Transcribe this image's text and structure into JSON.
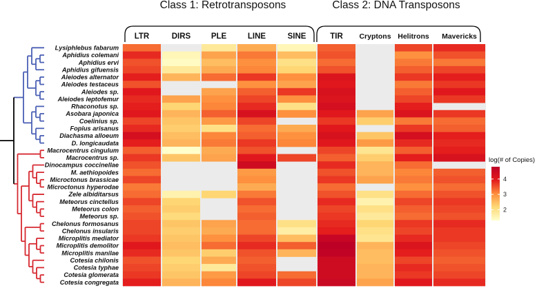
{
  "chart_data": {
    "type": "heatmap",
    "groups": [
      {
        "label": "Class 1: Retrotransposons",
        "columns": [
          "LTR",
          "DIRS",
          "PLE",
          "LINE",
          "SINE"
        ]
      },
      {
        "label": "Class 2: DNA Transposons",
        "columns": [
          "TIR",
          "Cryptons",
          "Helitrons",
          "Mavericks"
        ]
      }
    ],
    "columns": [
      "LTR",
      "DIRS",
      "PLE",
      "LINE",
      "SINE",
      "TIR",
      "Cryptons",
      "Helitrons",
      "Mavericks"
    ],
    "rows": [
      "Lysiphlebus fabarum",
      "Aphidius colemani",
      "Aphidius ervi",
      "Aphidius gifuensis",
      "Aleiodes alternator",
      "Aleiodes testaceus",
      "Aleiodes sp.",
      "Aleiodes leptofemur",
      "Rhaconotus sp.",
      "Asobara japonica",
      "Coelinius sp.",
      "Fopius arisanus",
      "Diachasma alloeum",
      "D. longicaudata",
      "Macrocentrus cingulum",
      "Macrocentrus sp.",
      "Dinocampus coccinellae",
      "M. aethiopoides",
      "Microctonus brassicae",
      "Microctonus hyperodae",
      "Zele albiditarsus",
      "Meteorus cinctellus",
      "Meteorus colon",
      "Meteorus sp.",
      "Chelonus formosanus",
      "Chelonus insularis",
      "Microplitis mediator",
      "Microplitis demolitor",
      "Microplitis manilae",
      "Cotesia chilonis",
      "Cotesia typhae",
      "Cotesia glomerata",
      "Cotesia congregata"
    ],
    "values": [
      [
        3.3,
        null,
        1.8,
        2.7,
        1.5,
        3.4,
        null,
        3.6,
        3.8
      ],
      [
        3.8,
        1.5,
        2.8,
        3.2,
        2.5,
        3.5,
        null,
        3.0,
        3.5
      ],
      [
        3.5,
        1.4,
        2.5,
        3.0,
        2.0,
        3.3,
        null,
        3.2,
        3.2
      ],
      [
        3.6,
        1.8,
        2.7,
        3.1,
        2.2,
        3.5,
        null,
        3.4,
        3.6
      ],
      [
        3.9,
        2.6,
        3.3,
        3.7,
        3.0,
        4.1,
        null,
        3.7,
        3.9
      ],
      [
        3.5,
        null,
        null,
        3.0,
        2.8,
        4.0,
        null,
        3.2,
        3.7
      ],
      [
        4.0,
        null,
        2.8,
        3.4,
        3.7,
        4.2,
        null,
        3.4,
        4.0
      ],
      [
        3.8,
        2.8,
        3.0,
        3.6,
        3.0,
        4.1,
        null,
        3.6,
        3.7
      ],
      [
        3.9,
        2.2,
        3.1,
        3.8,
        2.0,
        4.3,
        null,
        3.9,
        null
      ],
      [
        4.0,
        2.6,
        3.4,
        4.2,
        3.0,
        4.0,
        2.8,
        4.1,
        3.7
      ],
      [
        3.6,
        2.4,
        2.9,
        3.6,
        null,
        3.7,
        2.3,
        3.2,
        3.3
      ],
      [
        3.8,
        2.3,
        2.0,
        3.3,
        2.7,
        4.0,
        null,
        3.7,
        3.4
      ],
      [
        4.3,
        2.5,
        3.1,
        3.4,
        3.0,
        4.2,
        2.4,
        4.3,
        3.9
      ],
      [
        3.9,
        2.6,
        3.2,
        3.7,
        3.1,
        4.0,
        2.9,
        3.8,
        3.8
      ],
      [
        3.4,
        1.3,
        2.7,
        3.5,
        null,
        3.6,
        1.9,
        3.4,
        3.9
      ],
      [
        3.7,
        2.4,
        2.8,
        4.0,
        3.6,
        3.4,
        2.3,
        3.9,
        4.2
      ],
      [
        3.5,
        null,
        null,
        4.4,
        null,
        3.8,
        2.6,
        3.3,
        null
      ],
      [
        3.3,
        null,
        null,
        2.9,
        null,
        3.5,
        2.6,
        3.1,
        3.4
      ],
      [
        3.6,
        null,
        null,
        3.0,
        null,
        3.7,
        2.8,
        3.2,
        3.5
      ],
      [
        3.2,
        null,
        null,
        2.7,
        null,
        3.3,
        null,
        3.0,
        3.3
      ],
      [
        3.3,
        1.6,
        2.2,
        3.2,
        null,
        3.5,
        2.0,
        3.3,
        3.5
      ],
      [
        3.6,
        2.2,
        null,
        3.5,
        null,
        3.8,
        1.6,
        3.6,
        3.7
      ],
      [
        3.4,
        2.3,
        null,
        3.3,
        null,
        3.6,
        2.0,
        3.4,
        3.6
      ],
      [
        3.5,
        2.1,
        null,
        3.4,
        null,
        3.7,
        1.8,
        3.3,
        3.5
      ],
      [
        3.6,
        2.4,
        2.8,
        3.3,
        2.0,
        3.8,
        2.2,
        3.7,
        3.8
      ],
      [
        3.6,
        2.3,
        2.7,
        3.3,
        1.7,
        3.9,
        2.0,
        3.6,
        3.7
      ],
      [
        3.7,
        2.4,
        3.0,
        3.6,
        2.5,
        4.6,
        1.9,
        3.8,
        3.7
      ],
      [
        4.0,
        2.5,
        3.3,
        3.8,
        3.4,
        4.8,
        2.6,
        4.1,
        3.6
      ],
      [
        3.8,
        2.4,
        2.3,
        3.5,
        2.6,
        4.7,
        2.5,
        3.9,
        3.5
      ],
      [
        3.5,
        2.2,
        2.7,
        3.4,
        null,
        4.4,
        2.5,
        3.6,
        3.4
      ],
      [
        3.6,
        2.3,
        1.8,
        3.5,
        null,
        4.4,
        2.6,
        3.8,
        3.5
      ],
      [
        3.7,
        2.4,
        2.9,
        3.6,
        3.3,
        4.4,
        2.6,
        3.7,
        3.6
      ],
      [
        3.9,
        2.6,
        3.1,
        4.0,
        3.6,
        4.5,
        2.8,
        4.0,
        3.8
      ]
    ],
    "colorbar": {
      "title": "log(# of Copies)",
      "ticks": [
        2,
        3,
        4
      ],
      "range": [
        1.3,
        4.8
      ],
      "low_color": "#ffffcc",
      "mid_color": "#fd8d3c",
      "high_color": "#bd0026",
      "missing_color": "#e6e6e6"
    },
    "tree_colors": {
      "outgroup": "#000000",
      "clade_1": "#4a5fb4",
      "clade_2": "#d62930"
    },
    "clade_1_rows": 14,
    "clade_2_rows": 19
  }
}
